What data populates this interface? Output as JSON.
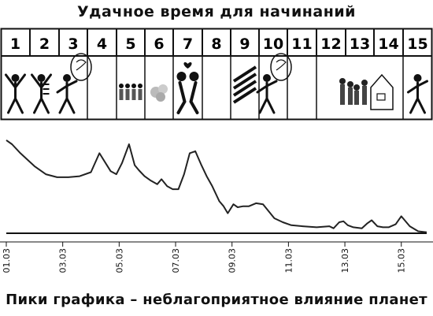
{
  "title": "Удачное время для начинаний",
  "footer": "Пики графика – неблагоприятное влияние планет",
  "days": [
    "1",
    "2",
    "3",
    "4",
    "5",
    "6",
    "7",
    "8",
    "9",
    "10",
    "11",
    "12",
    "13",
    "14",
    "15"
  ],
  "icons": [
    {
      "day": 1,
      "name": "dancing-figure-icon"
    },
    {
      "day": 2,
      "name": "dancing-couple-icon"
    },
    {
      "day": 3,
      "name": "thinking-figure-icon"
    },
    {
      "day": 5,
      "name": "crowd-icon"
    },
    {
      "day": 6,
      "name": "smoke-cloud-icon"
    },
    {
      "day": 7,
      "name": "kissing-couple-icon"
    },
    {
      "day": 9,
      "name": "diagonal-stripes-icon"
    },
    {
      "day": 10,
      "name": "thinking-figure-icon"
    },
    {
      "day": 12,
      "name": "family-house-icon"
    },
    {
      "day": 15,
      "name": "waving-figure-icon"
    }
  ],
  "chart_data": {
    "type": "line",
    "title": "",
    "xlabel": "",
    "ylabel": "",
    "x_ticks": [
      "01.03",
      "03.03",
      "05.03",
      "07.03",
      "09.03",
      "11.03",
      "13.03",
      "15.03"
    ],
    "xlim": [
      1.0,
      15.9
    ],
    "ylim": [
      0,
      100
    ],
    "grid": false,
    "series": [
      {
        "x": [
          1.0,
          1.2,
          1.5,
          2.0,
          2.4,
          2.8,
          3.2,
          3.6,
          4.0,
          4.3,
          4.5,
          4.7,
          4.9,
          5.1,
          5.35,
          5.55,
          5.7,
          5.9,
          6.1,
          6.35,
          6.5,
          6.7,
          6.9,
          7.1,
          7.3,
          7.5,
          7.7,
          7.9,
          8.1,
          8.3,
          8.55,
          8.7,
          8.85,
          9.05,
          9.2,
          9.4,
          9.6,
          9.85,
          10.1,
          10.3,
          10.5,
          10.8,
          11.1,
          11.5,
          12.0,
          12.45,
          12.6,
          12.8,
          12.95,
          13.1,
          13.3,
          13.6,
          13.8,
          13.95,
          14.15,
          14.35,
          14.55,
          14.8,
          15.0,
          15.3,
          15.6,
          15.9
        ],
        "values": [
          93,
          89,
          80,
          67,
          59,
          56,
          56,
          57,
          61,
          80,
          71,
          62,
          59,
          70,
          89,
          68,
          63,
          57,
          53,
          49,
          54,
          47,
          44,
          44,
          59,
          80,
          82,
          69,
          57,
          47,
          32,
          27,
          20,
          29,
          26,
          27,
          27,
          30,
          29,
          22,
          15,
          11,
          8,
          7,
          6,
          7,
          5,
          11,
          12,
          8,
          6,
          5,
          10,
          13,
          7,
          6,
          6,
          9,
          17,
          7,
          2,
          1
        ]
      }
    ]
  }
}
